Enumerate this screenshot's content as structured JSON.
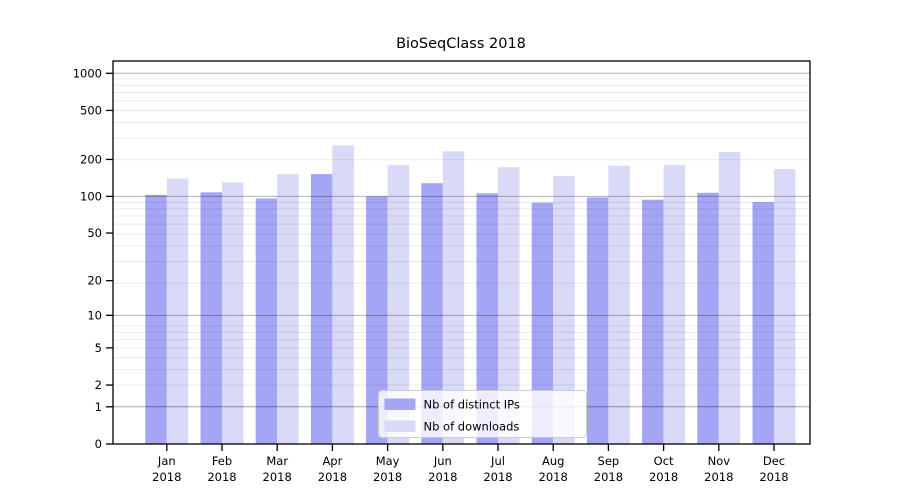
{
  "title": "BioSeqClass 2018",
  "chart_data": {
    "type": "bar",
    "title": "BioSeqClass 2018",
    "categories": [
      "Jan",
      "Feb",
      "Mar",
      "Apr",
      "May",
      "Jun",
      "Jul",
      "Aug",
      "Sep",
      "Oct",
      "Nov",
      "Dec"
    ],
    "x_sub_label": "2018",
    "series": [
      {
        "name": "Nb of distinct IPs",
        "color": "#a5a5f5",
        "values": [
          103,
          108,
          96,
          152,
          100,
          128,
          106,
          89,
          98,
          94,
          107,
          90
        ]
      },
      {
        "name": "Nb of downloads",
        "color": "#d9d9f8",
        "values": [
          140,
          130,
          152,
          260,
          180,
          233,
          173,
          147,
          178,
          181,
          230,
          167
        ]
      }
    ],
    "xlabel": "",
    "ylabel": "",
    "y_scale": "log10(value+1)",
    "y_ticks": [
      0,
      1,
      2,
      5,
      10,
      20,
      50,
      100,
      200,
      500,
      1000
    ],
    "y_major_gridlines": [
      1,
      10,
      100,
      1000
    ],
    "ylim": [
      0,
      1300
    ],
    "grid": true,
    "legend_position": "lower center",
    "legend": [
      "Nb of distinct IPs",
      "Nb of downloads"
    ]
  },
  "colors": {
    "background": "#ffffff",
    "axis": "#000000",
    "text": "#000000",
    "grid_major": "rgba(0,0,0,0.30)",
    "grid_minor": "rgba(0,0,0,0.08)",
    "legend_bg": "rgba(255,255,255,0.80)",
    "legend_border": "#cccccc"
  }
}
